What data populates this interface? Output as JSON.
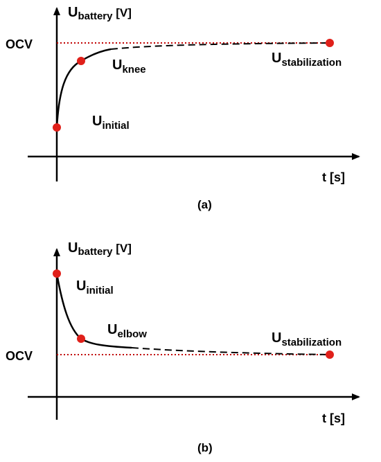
{
  "colors": {
    "axis": "#000000",
    "curve": "#000000",
    "ocv_line": "#c00000",
    "marker": "#e0201a"
  },
  "panels": [
    {
      "caption": "(a)",
      "y_axis": {
        "main": "U",
        "sub": "battery",
        "unit": " [V]"
      },
      "x_axis": {
        "label": "t [s]"
      },
      "ocv_label": "OCV",
      "points": {
        "initial": {
          "main": "U",
          "sub": "initial"
        },
        "knee": {
          "main": "U",
          "sub": "knee"
        },
        "stabilization": {
          "main": "U",
          "sub": "stabilization"
        }
      }
    },
    {
      "caption": "(b)",
      "y_axis": {
        "main": "U",
        "sub": "battery",
        "unit": " [V]"
      },
      "x_axis": {
        "label": "t [s]"
      },
      "ocv_label": "OCV",
      "points": {
        "initial": {
          "main": "U",
          "sub": "initial"
        },
        "elbow": {
          "main": "U",
          "sub": "elbow"
        },
        "stabilization": {
          "main": "U",
          "sub": "stabilization"
        }
      }
    }
  ]
}
